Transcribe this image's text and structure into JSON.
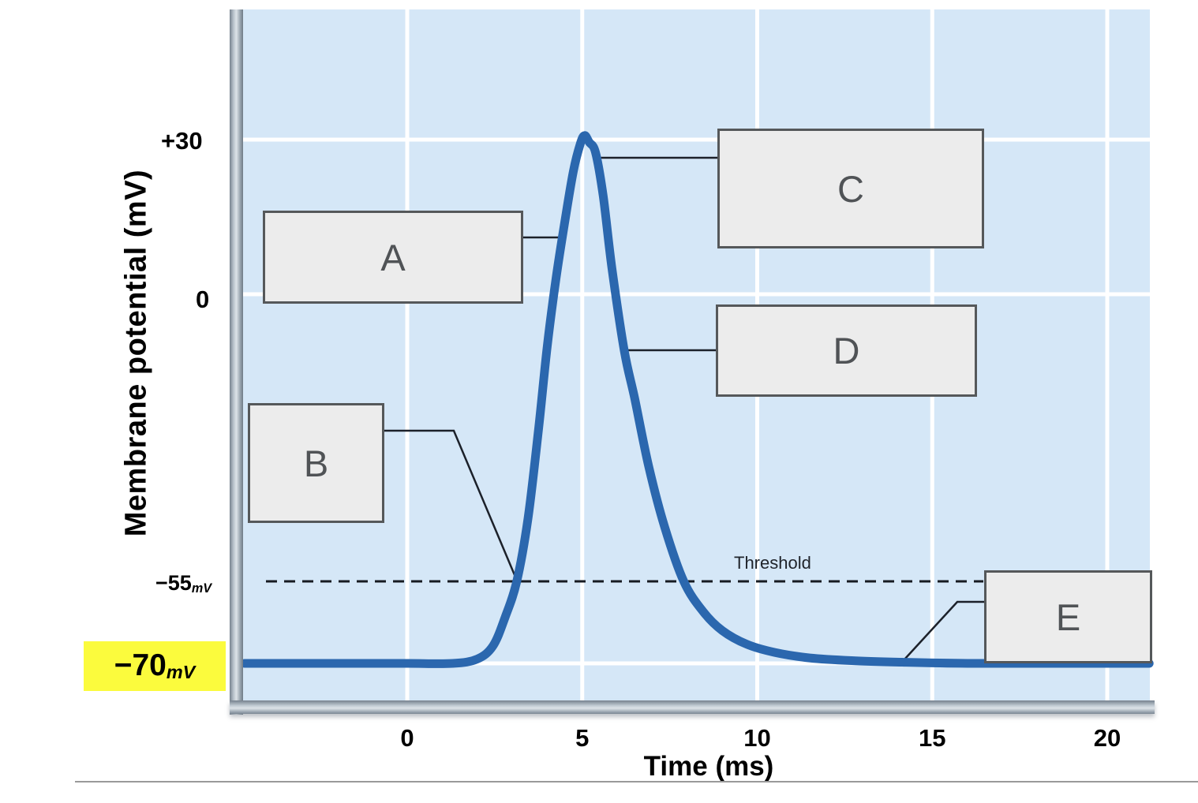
{
  "y_axis": {
    "label": "Membrane potential (mV)",
    "ticks": {
      "plus30": "+30",
      "zero": "0",
      "minus55": {
        "main": "−55",
        "sub": "mV"
      },
      "minus70": {
        "main": "−70",
        "sub": "mV"
      }
    }
  },
  "x_axis": {
    "label": "Time (ms)"
  },
  "threshold_label": "Threshold",
  "answer_boxes": {
    "a": "A",
    "b": "B",
    "c": "C",
    "d": "D",
    "e": "E"
  },
  "colors": {
    "plot_background": "#d5e7f7",
    "gridline": "#ffffff",
    "curve_blue": "#2b67ae",
    "dashed_line": "#171b22",
    "connector_line": "#1c212a",
    "highlight_yellow": "#fbfb3d",
    "box_fill": "#ececec",
    "box_border": "#55585a"
  },
  "chart_data": {
    "type": "line",
    "title": "Action potential labeling diagram",
    "xlabel": "Time (ms)",
    "ylabel": "Membrane potential (mV)",
    "x_ticks": [
      0,
      5,
      10,
      15,
      20
    ],
    "x_range": [
      -4.7,
      21.2
    ],
    "y_tick_values": [
      30,
      0,
      -55,
      -70
    ],
    "y_gridline_values": [
      30,
      0,
      -70
    ],
    "grid": true,
    "threshold_mV": -55,
    "resting_mV": -70,
    "peak_mV": 30.8,
    "peak_time_ms": 5.07,
    "curve": [
      [
        -4.65,
        -70
      ],
      [
        -3,
        -70
      ],
      [
        -1.5,
        -70
      ],
      [
        0,
        -70
      ],
      [
        1.3,
        -70
      ],
      [
        2.0,
        -69.2
      ],
      [
        2.45,
        -66.8
      ],
      [
        2.8,
        -61.5
      ],
      [
        3.13,
        -55
      ],
      [
        3.45,
        -43
      ],
      [
        3.75,
        -26
      ],
      [
        4.0,
        -10
      ],
      [
        4.25,
        3
      ],
      [
        4.5,
        14
      ],
      [
        4.75,
        24
      ],
      [
        4.95,
        29.3
      ],
      [
        5.07,
        30.8
      ],
      [
        5.2,
        29.5
      ],
      [
        5.38,
        27.5
      ],
      [
        5.6,
        19
      ],
      [
        5.85,
        5
      ],
      [
        6.2,
        -10.8
      ],
      [
        6.5,
        -20
      ],
      [
        6.9,
        -33
      ],
      [
        7.35,
        -44.5
      ],
      [
        7.9,
        -55
      ],
      [
        8.45,
        -60.5
      ],
      [
        9.0,
        -64
      ],
      [
        9.7,
        -66.5
      ],
      [
        10.5,
        -68
      ],
      [
        11.5,
        -69
      ],
      [
        12.7,
        -69.5
      ],
      [
        14.2,
        -69.8
      ],
      [
        16,
        -70
      ],
      [
        18.5,
        -70
      ],
      [
        21.2,
        -70
      ]
    ]
  }
}
